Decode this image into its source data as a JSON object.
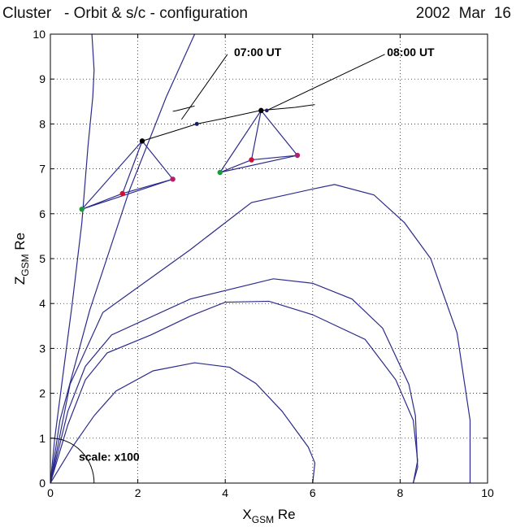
{
  "header": {
    "title": "Cluster   - Orbit & s/c - configuration",
    "date": "2002  Mar  16"
  },
  "chart_data": {
    "type": "line",
    "title": "Cluster   - Orbit & s/c - configuration",
    "date": "2002  Mar  16",
    "xlabel": {
      "main": "X",
      "sub": "GSM",
      "unit": " Re"
    },
    "ylabel": {
      "main": "Z",
      "sub": "GSM",
      "unit": " Re"
    },
    "xlim": [
      0,
      10
    ],
    "ylim": [
      0,
      10
    ],
    "xticks": [
      "0",
      "2",
      "4",
      "6",
      "8",
      "10"
    ],
    "yticks": [
      "0",
      "1",
      "2",
      "3",
      "4",
      "5",
      "6",
      "7",
      "8",
      "9",
      "10"
    ],
    "grid": true,
    "colors": {
      "field_line": "#2b2b8c",
      "orbit": "#000000",
      "sc1": "#000000",
      "sc2": "#cc1133",
      "sc3": "#1a9a3a",
      "sc4": "#b0206e"
    },
    "field_lines": [
      [
        [
          0,
          0
        ],
        [
          0.5,
          0.8
        ],
        [
          1.0,
          1.5
        ],
        [
          1.5,
          2.05
        ],
        [
          2.35,
          2.5
        ],
        [
          3.3,
          2.68
        ],
        [
          4.1,
          2.58
        ],
        [
          4.7,
          2.22
        ],
        [
          5.3,
          1.6
        ],
        [
          5.9,
          0.8
        ],
        [
          6.05,
          0.45
        ],
        [
          6.0,
          0.0
        ]
      ],
      [
        [
          0,
          0
        ],
        [
          0.4,
          1.3
        ],
        [
          0.8,
          2.3
        ],
        [
          1.3,
          2.9
        ],
        [
          2.3,
          3.3
        ],
        [
          3.2,
          3.72
        ],
        [
          4.0,
          4.03
        ],
        [
          5.0,
          4.05
        ],
        [
          6.0,
          3.75
        ],
        [
          7.2,
          3.2
        ],
        [
          7.9,
          2.3
        ],
        [
          8.3,
          1.4
        ],
        [
          8.4,
          0.5
        ],
        [
          8.3,
          0.0
        ]
      ],
      [
        [
          0,
          0
        ],
        [
          0.4,
          1.6
        ],
        [
          0.8,
          2.6
        ],
        [
          1.4,
          3.3
        ],
        [
          3.2,
          4.1
        ],
        [
          5.1,
          4.55
        ],
        [
          6.0,
          4.45
        ],
        [
          6.9,
          4.1
        ],
        [
          7.6,
          3.45
        ],
        [
          8.2,
          2.2
        ],
        [
          8.35,
          1.5
        ],
        [
          8.4,
          0.35
        ],
        [
          8.3,
          0.0
        ]
      ],
      [
        [
          0,
          0
        ],
        [
          0.45,
          2.2
        ],
        [
          1.2,
          3.8
        ],
        [
          3.2,
          5.2
        ],
        [
          4.6,
          6.25
        ],
        [
          6.0,
          6.55
        ],
        [
          6.5,
          6.65
        ],
        [
          7.4,
          6.42
        ],
        [
          8.1,
          5.8
        ],
        [
          8.7,
          5.0
        ],
        [
          9.3,
          3.35
        ],
        [
          9.6,
          1.4
        ],
        [
          9.6,
          0.0
        ]
      ],
      [
        [
          0,
          0
        ],
        [
          0.22,
          1.4
        ],
        [
          0.9,
          3.85
        ],
        [
          1.8,
          6.5
        ],
        [
          2.65,
          8.6
        ],
        [
          3.3,
          10.0
        ]
      ],
      [
        [
          0,
          0
        ],
        [
          0.1,
          1.0
        ],
        [
          0.3,
          2.5
        ],
        [
          0.5,
          4.0
        ],
        [
          0.72,
          5.8
        ],
        [
          0.86,
          7.5
        ],
        [
          0.97,
          8.6
        ],
        [
          1.0,
          9.2
        ],
        [
          0.95,
          10.0
        ]
      ]
    ],
    "orbit_segments": [
      [
        [
          2.1,
          7.62
        ],
        [
          2.8,
          7.83
        ],
        [
          3.35,
          8.0
        ],
        [
          4.0,
          8.13
        ],
        [
          4.8,
          8.3
        ],
        [
          5.6,
          8.37
        ],
        [
          6.05,
          8.43
        ]
      ],
      [
        [
          2.8,
          8.28
        ],
        [
          2.9,
          8.3
        ],
        [
          3.1,
          8.35
        ],
        [
          3.3,
          8.4
        ]
      ]
    ],
    "annotations": [
      {
        "text": "07:00 UT",
        "x": 4.2,
        "y": 9.6,
        "line": [
          [
            3.0,
            8.1
          ],
          [
            4.05,
            9.55
          ]
        ]
      },
      {
        "text": "08:00 UT",
        "x": 7.7,
        "y": 9.6,
        "line": [
          [
            4.95,
            8.3
          ],
          [
            7.65,
            9.55
          ]
        ]
      }
    ],
    "orbit_marker": {
      "x": 3.35,
      "y": 8.0
    },
    "tetrahedra": [
      {
        "sc1": [
          2.1,
          7.62
        ],
        "sc2": [
          1.65,
          6.45
        ],
        "sc3": [
          0.72,
          6.1
        ],
        "sc4": [
          2.8,
          6.77
        ]
      },
      {
        "sc1": [
          4.82,
          8.3
        ],
        "sc2": [
          4.6,
          7.2
        ],
        "sc3": [
          3.88,
          6.92
        ],
        "sc4": [
          5.65,
          7.3
        ]
      }
    ],
    "earth_radius": 1.0,
    "scale_label": "scale: x100",
    "extra_marker": {
      "x": 4.95,
      "y": 8.3
    }
  }
}
